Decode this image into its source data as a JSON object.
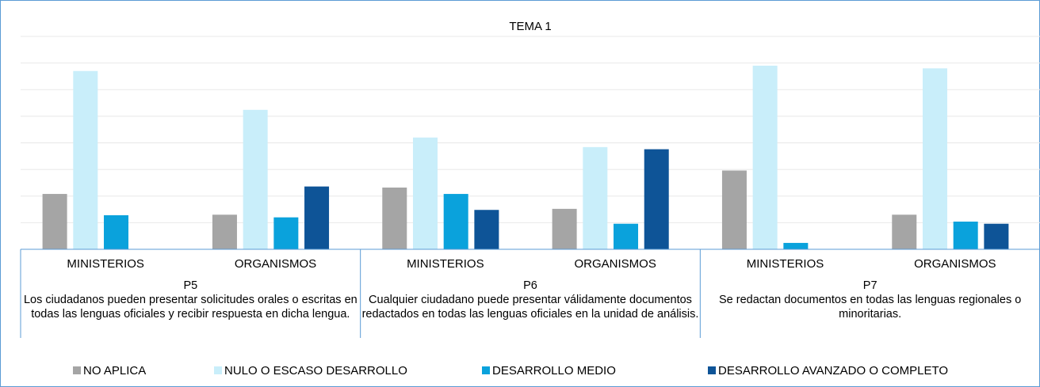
{
  "chart_data": {
    "type": "bar",
    "title": "TEMA 1",
    "categories": [
      "MINISTERIOS",
      "ORGANISMOS",
      "MINISTERIOS",
      "ORGANISMOS",
      "MINISTERIOS",
      "ORGANISMOS"
    ],
    "groups": [
      {
        "label": "P5",
        "text": "Los ciudadanos pueden presentar solicitudes orales o escritas en todas las lenguas oficiales y recibir respuesta en dicha lengua."
      },
      {
        "label": "P6",
        "text": "Cualquier ciudadano puede presentar válidamente documentos redactados en todas las lenguas oficiales en  la unidad de análisis."
      },
      {
        "label": "P7",
        "text": "Se redactan documentos en todas las lenguas regionales o minoritarias."
      }
    ],
    "series": [
      {
        "name": "NO APLICA",
        "color": "#a5a5a5",
        "values": [
          10.4,
          6.5,
          11.6,
          7.6,
          14.8,
          6.5
        ]
      },
      {
        "name": "NULO O ESCASO DESARROLLO",
        "color": "#c9eefa",
        "values": [
          33.5,
          26.2,
          21.0,
          19.2,
          34.5,
          34.0
        ]
      },
      {
        "name": "DESARROLLO MEDIO",
        "color": "#0aa2dc",
        "values": [
          6.4,
          6.0,
          10.4,
          4.8,
          1.2,
          5.2
        ]
      },
      {
        "name": "DESARROLLO AVANZADO O COMPLETO",
        "color": "#0e5497",
        "values": [
          0,
          11.8,
          7.4,
          18.8,
          0,
          4.8
        ]
      }
    ],
    "ylim": [
      0,
      40
    ],
    "yticks": [
      0,
      5,
      10,
      15,
      20,
      25,
      30,
      35,
      40
    ],
    "grid": true
  }
}
